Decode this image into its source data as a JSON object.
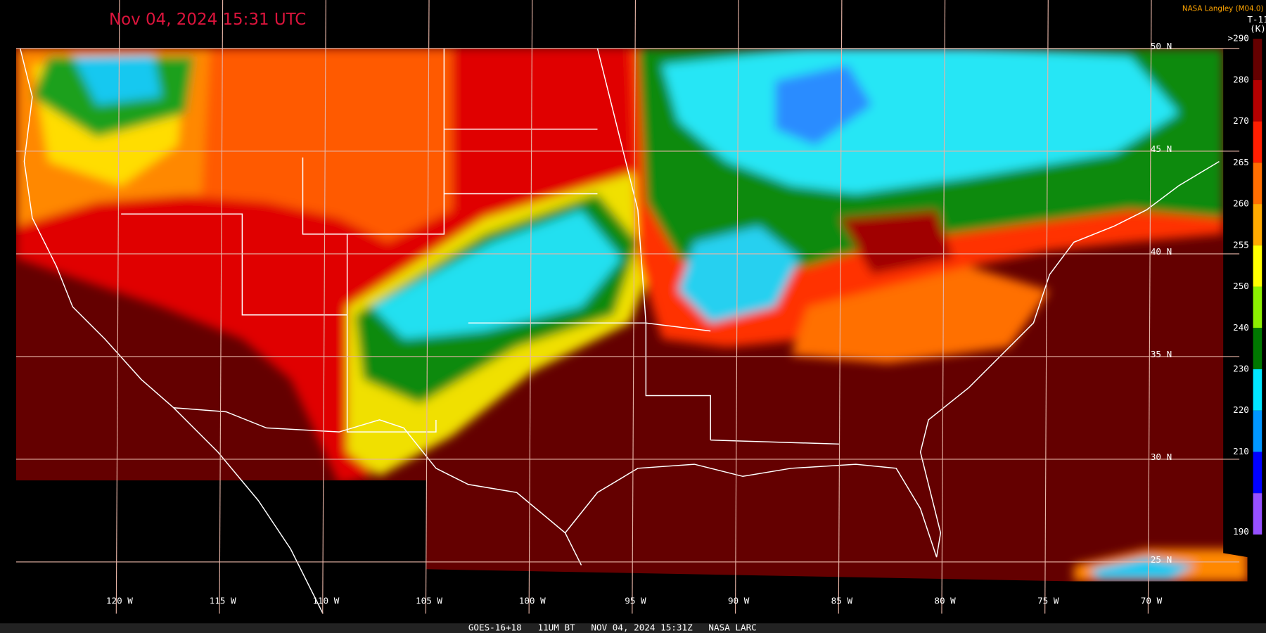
{
  "header": {
    "title": "Nov 04, 2024 15:31 UTC",
    "credit": "NASA Langley (M04.0)"
  },
  "colorbar": {
    "title": "T-11",
    "unit": "(K)",
    "segments": [
      {
        "label": ">290",
        "color": "#640000"
      },
      {
        "label": 280,
        "color": "#b40000"
      },
      {
        "label": 270,
        "color": "#ff1e00"
      },
      {
        "label": 265,
        "color": "#ff6e00"
      },
      {
        "label": 260,
        "color": "#ffaa00"
      },
      {
        "label": 255,
        "color": "#ffff00"
      },
      {
        "label": 250,
        "color": "#8cf000"
      },
      {
        "label": 240,
        "color": "#007800"
      },
      {
        "label": 230,
        "color": "#00e6ff"
      },
      {
        "label": 220,
        "color": "#0096ff"
      },
      {
        "label": 210,
        "color": "#0000ff"
      },
      {
        "label": 190,
        "color": "#9650ff"
      }
    ]
  },
  "longitudes": [
    "120 W",
    "115 W",
    "110 W",
    "105 W",
    "100 W",
    "95 W",
    "90 W",
    "85 W",
    "80 W",
    "75 W",
    "70 W"
  ],
  "latitudes": [
    "50 N",
    "45 N",
    "40 N",
    "35 N",
    "30 N",
    "25 N"
  ],
  "footer": "GOES-16+18   11UM BT   NOV 04, 2024 15:31Z   NASA LARC"
}
